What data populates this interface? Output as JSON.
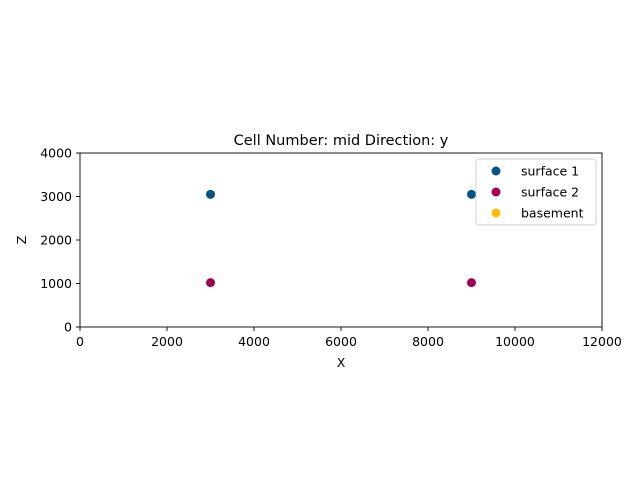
{
  "chart_data": {
    "type": "scatter",
    "title": "Cell Number: mid Direction: y",
    "xlabel": "X",
    "ylabel": "Z",
    "xlim": [
      0,
      12000
    ],
    "ylim": [
      0,
      4000
    ],
    "xticks": [
      0,
      2000,
      4000,
      6000,
      8000,
      10000,
      12000
    ],
    "yticks": [
      0,
      1000,
      2000,
      3000,
      4000
    ],
    "grid": false,
    "legend_position": "top-right",
    "series": [
      {
        "name": "surface 1",
        "color": "#015482",
        "points": [
          {
            "x": 3000,
            "y": 3050
          },
          {
            "x": 9000,
            "y": 3050
          }
        ]
      },
      {
        "name": "surface 2",
        "color": "#9f0052",
        "points": [
          {
            "x": 3000,
            "y": 1020
          },
          {
            "x": 9000,
            "y": 1020
          }
        ]
      },
      {
        "name": "basement",
        "color": "#ffbe00",
        "points": []
      }
    ]
  }
}
